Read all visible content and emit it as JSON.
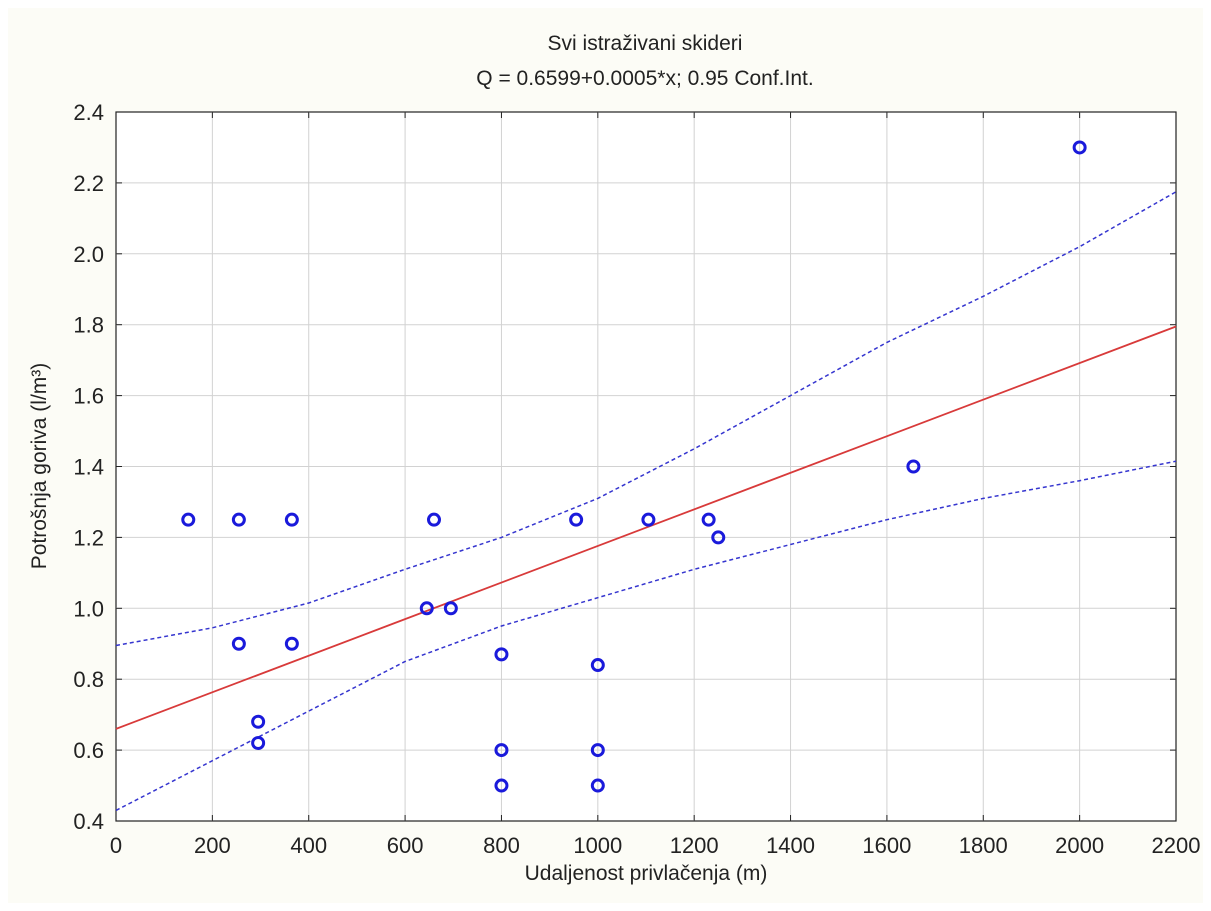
{
  "chart_data": {
    "type": "scatter",
    "title": "Svi istraživani skideri",
    "subtitle": "Q = 0.6599+0.0005*x; 0.95 Conf.Int.",
    "xlabel": "Udaljenost privlačenja (m)",
    "ylabel": "Potrošnja goriva (l/m³)",
    "xlim": [
      0,
      2200
    ],
    "ylim": [
      0.4,
      2.4
    ],
    "x_ticks": [
      0,
      200,
      400,
      600,
      800,
      1000,
      1200,
      1400,
      1600,
      1800,
      2000,
      2200
    ],
    "y_ticks": [
      0.4,
      0.6,
      0.8,
      1.0,
      1.2,
      1.4,
      1.6,
      1.8,
      2.0,
      2.2,
      2.4
    ],
    "x_tick_labels": [
      "0",
      "200",
      "400",
      "600",
      "800",
      "1000",
      "1200",
      "1400",
      "1600",
      "1800",
      "2000",
      "2200"
    ],
    "y_tick_labels": [
      "0.4",
      "0.6",
      "0.8",
      "1.0",
      "1.2",
      "1.4",
      "1.6",
      "1.8",
      "2.0",
      "2.2",
      "2.4"
    ],
    "grid": true,
    "points": [
      {
        "x": 150,
        "y": 1.25
      },
      {
        "x": 255,
        "y": 1.25
      },
      {
        "x": 365,
        "y": 1.25
      },
      {
        "x": 660,
        "y": 1.25
      },
      {
        "x": 955,
        "y": 1.25
      },
      {
        "x": 1105,
        "y": 1.25
      },
      {
        "x": 1230,
        "y": 1.25
      },
      {
        "x": 1250,
        "y": 1.2
      },
      {
        "x": 1655,
        "y": 1.4
      },
      {
        "x": 2000,
        "y": 2.3
      },
      {
        "x": 255,
        "y": 0.9
      },
      {
        "x": 365,
        "y": 0.9
      },
      {
        "x": 645,
        "y": 1.0
      },
      {
        "x": 695,
        "y": 1.0
      },
      {
        "x": 295,
        "y": 0.68
      },
      {
        "x": 295,
        "y": 0.62
      },
      {
        "x": 800,
        "y": 0.87
      },
      {
        "x": 800,
        "y": 0.6
      },
      {
        "x": 800,
        "y": 0.5
      },
      {
        "x": 1000,
        "y": 0.84
      },
      {
        "x": 1000,
        "y": 0.6
      },
      {
        "x": 1000,
        "y": 0.5
      }
    ],
    "regression": {
      "intercept": 0.6599,
      "slope": 0.0005,
      "x_range": [
        0,
        2200
      ],
      "y_at_end": 1.795
    },
    "conf_upper": [
      {
        "x": 0,
        "y": 0.895
      },
      {
        "x": 200,
        "y": 0.945
      },
      {
        "x": 400,
        "y": 1.015
      },
      {
        "x": 600,
        "y": 1.11
      },
      {
        "x": 800,
        "y": 1.2
      },
      {
        "x": 1000,
        "y": 1.31
      },
      {
        "x": 1200,
        "y": 1.45
      },
      {
        "x": 1400,
        "y": 1.6
      },
      {
        "x": 1600,
        "y": 1.75
      },
      {
        "x": 1800,
        "y": 1.88
      },
      {
        "x": 2000,
        "y": 2.02
      },
      {
        "x": 2200,
        "y": 2.175
      }
    ],
    "conf_lower": [
      {
        "x": 0,
        "y": 0.43
      },
      {
        "x": 200,
        "y": 0.57
      },
      {
        "x": 400,
        "y": 0.71
      },
      {
        "x": 600,
        "y": 0.85
      },
      {
        "x": 800,
        "y": 0.95
      },
      {
        "x": 1000,
        "y": 1.03
      },
      {
        "x": 1200,
        "y": 1.11
      },
      {
        "x": 1400,
        "y": 1.18
      },
      {
        "x": 1600,
        "y": 1.25
      },
      {
        "x": 1800,
        "y": 1.31
      },
      {
        "x": 2000,
        "y": 1.36
      },
      {
        "x": 2200,
        "y": 1.415
      }
    ],
    "colors": {
      "points": "#1a1adb",
      "regression": "#d83a3a",
      "confidence": "#3535cf",
      "grid": "#d2d2d2",
      "background": "#fcfcf6",
      "plot_area": "#ffffff"
    }
  }
}
